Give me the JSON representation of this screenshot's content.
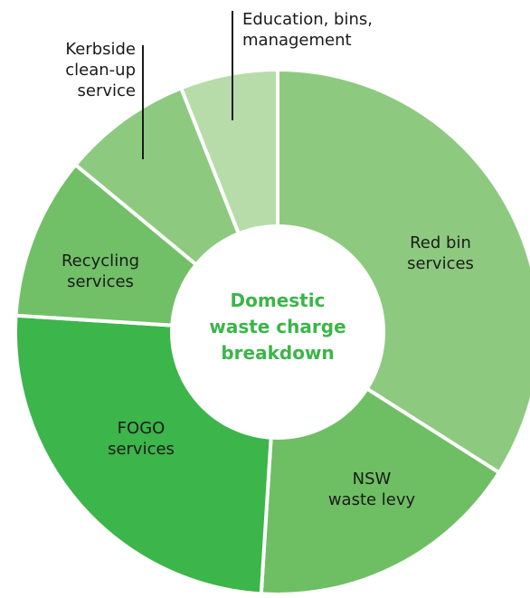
{
  "chart_data": {
    "type": "donut",
    "title": "Domestic\nwaste charge\nbreakdown",
    "categories": [
      "Red bin\nservices",
      "NSW\nwaste levy",
      "FOGO\nservices",
      "Recycling\nservices",
      "Kerbside\nclean-up\nservice",
      "Education, bins,\nmanagement"
    ],
    "values": [
      34,
      17,
      25,
      10,
      8,
      6
    ],
    "colors": [
      "#8dca7f",
      "#6ebf63",
      "#3cb54a",
      "#71c067",
      "#8dca7f",
      "#b7dca9"
    ]
  }
}
